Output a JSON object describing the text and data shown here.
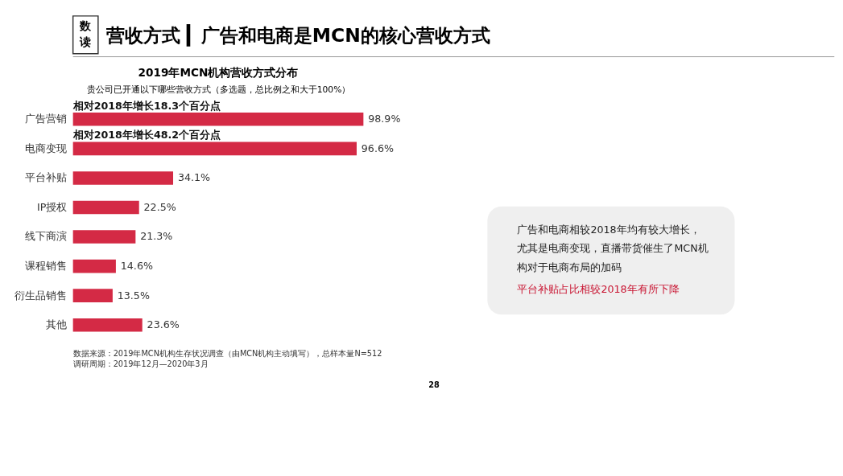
{
  "chart_data": [
    {
      "type": "bar",
      "orientation": "horizontal",
      "title": "营收方式 ▎广告和电商是MCN的核心营收方式",
      "subtitle": "2019年MCN机构营收方式分布",
      "xlabel": "贵公司已开通以下哪些营收方式（多选题，总比例之和大于100%）",
      "categories": [
        "广告营销",
        "电商变现",
        "平台补贴",
        "IP授权",
        "线下商演",
        "课程销售",
        "衍生品销售",
        "其他"
      ],
      "values": [
        98.9,
        96.6,
        34.1,
        22.5,
        21.3,
        14.6,
        13.5,
        23.6
      ],
      "value_labels": [
        "98.9%",
        "96.6%",
        "34.1%",
        "22.5%",
        "21.3%",
        "14.6%",
        "13.5%",
        "23.6%"
      ],
      "color": "#d42a45",
      "annotations": [
        "数读",
        "相对2018年增长18.3个百分点",
        "相对2018年增长48.2个百分点",
        "数据来源：2019年MCN机构生存状况调查（由MCN机构主动填写），总样本量N=512",
        "调研周期：2019年12月—2020年3月",
        "28"
      ]
    },
    {
      "type": "other",
      "annotations": [
        "广告和电商相较2018年均有较大增长，尤其是电商变现，直播带货催生了MCN机构对于电商布局的加码",
        "平台补贴占比相较2018年有所下降"
      ]
    }
  ]
}
